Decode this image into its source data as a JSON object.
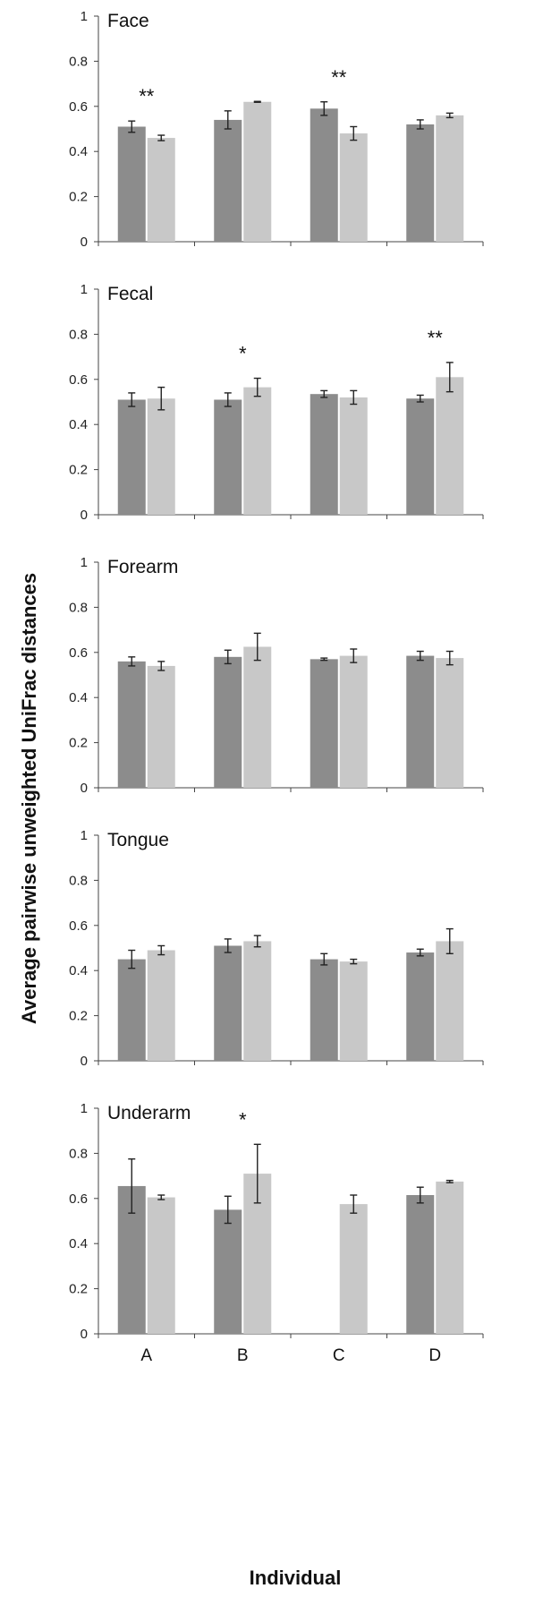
{
  "chart_data": {
    "type": "bar",
    "ylabel": "Average pairwise unweighted UniFrac distances",
    "xlabel": "Individual",
    "categories": [
      "A",
      "B",
      "C",
      "D"
    ],
    "ylim": [
      0,
      1
    ],
    "yticks": [
      "0",
      "0.2",
      "0.4",
      "0.6",
      "0.8",
      "1"
    ],
    "colors": {
      "series1": "#8c8c8c",
      "series2": "#c8c8c8",
      "error": "#222222"
    },
    "panels": [
      {
        "title": "Face",
        "series": [
          {
            "values": [
              0.51,
              0.54,
              0.59,
              0.52
            ],
            "errors": [
              0.025,
              0.04,
              0.03,
              0.02
            ]
          },
          {
            "values": [
              0.46,
              0.62,
              0.48,
              0.56
            ],
            "errors": [
              0.012,
              0.002,
              0.03,
              0.01
            ]
          }
        ],
        "annotations": [
          "**",
          "",
          "**",
          ""
        ]
      },
      {
        "title": "Fecal",
        "series": [
          {
            "values": [
              0.51,
              0.51,
              0.535,
              0.515
            ],
            "errors": [
              0.03,
              0.03,
              0.015,
              0.015
            ]
          },
          {
            "values": [
              0.515,
              0.565,
              0.52,
              0.61
            ],
            "errors": [
              0.05,
              0.04,
              0.03,
              0.065
            ]
          }
        ],
        "annotations": [
          "",
          "*",
          "",
          "**"
        ]
      },
      {
        "title": "Forearm",
        "series": [
          {
            "values": [
              0.56,
              0.58,
              0.57,
              0.585
            ],
            "errors": [
              0.02,
              0.03,
              0.005,
              0.02
            ]
          },
          {
            "values": [
              0.54,
              0.625,
              0.585,
              0.575
            ],
            "errors": [
              0.02,
              0.06,
              0.03,
              0.03
            ]
          }
        ],
        "annotations": [
          "",
          "",
          "",
          ""
        ]
      },
      {
        "title": "Tongue",
        "series": [
          {
            "values": [
              0.45,
              0.51,
              0.45,
              0.48
            ],
            "errors": [
              0.04,
              0.03,
              0.025,
              0.015
            ]
          },
          {
            "values": [
              0.49,
              0.53,
              0.44,
              0.53
            ],
            "errors": [
              0.02,
              0.025,
              0.01,
              0.055
            ]
          }
        ],
        "annotations": [
          "",
          "",
          "",
          ""
        ]
      },
      {
        "title": "Underarm",
        "series": [
          {
            "values": [
              0.655,
              0.55,
              0.0,
              0.615
            ],
            "errors": [
              0.12,
              0.06,
              0.0,
              0.035
            ]
          },
          {
            "values": [
              0.605,
              0.71,
              0.575,
              0.675
            ],
            "errors": [
              0.01,
              0.13,
              0.04,
              0.005
            ]
          }
        ],
        "annotations": [
          "",
          "*",
          "",
          ""
        ]
      }
    ]
  }
}
